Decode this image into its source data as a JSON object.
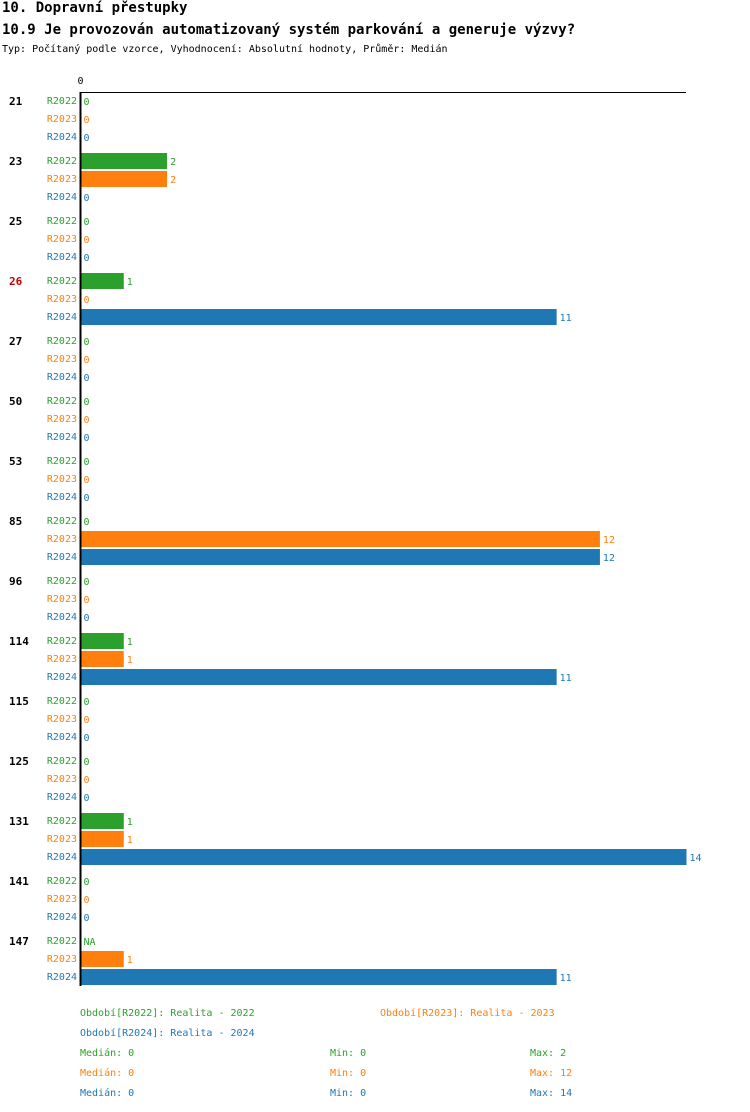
{
  "heading": {
    "section": "10. Dopravní přestupky",
    "question": "10.9 Je provozován automatizovaný systém parkování a generuje výzvy?",
    "info": "Typ: Počítaný podle vzorce, Vyhodnocení: Absolutní hodnoty, Průměr: Medián"
  },
  "colors": {
    "R2022": "#2ca02c",
    "R2023": "#ff7f0e",
    "R2024": "#1f77b4",
    "highlight": "#cc0000"
  },
  "chart_data": {
    "type": "bar",
    "orientation": "horizontal",
    "axis_label": "0",
    "xlim": [
      0,
      14
    ],
    "highlighted_category": "26",
    "categories": [
      "21",
      "23",
      "25",
      "26",
      "27",
      "50",
      "53",
      "85",
      "96",
      "114",
      "115",
      "125",
      "131",
      "141",
      "147"
    ],
    "series": [
      {
        "name": "R2022",
        "values": [
          0,
          2,
          0,
          1,
          0,
          0,
          0,
          0,
          0,
          1,
          0,
          0,
          1,
          0,
          "NA"
        ]
      },
      {
        "name": "R2023",
        "values": [
          0,
          2,
          0,
          0,
          0,
          0,
          0,
          12,
          0,
          1,
          0,
          0,
          1,
          0,
          1
        ]
      },
      {
        "name": "R2024",
        "values": [
          0,
          0,
          0,
          11,
          0,
          0,
          0,
          12,
          0,
          11,
          0,
          0,
          14,
          0,
          11
        ]
      }
    ]
  },
  "legend": {
    "r2022": "Období[R2022]: Realita - 2022",
    "r2023": "Období[R2023]: Realita - 2023",
    "r2024": "Období[R2024]: Realita - 2024"
  },
  "stats": {
    "r2022": {
      "median": "Medián: 0",
      "min": "Min: 0",
      "max": "Max: 2"
    },
    "r2023": {
      "median": "Medián: 0",
      "min": "Min: 0",
      "max": "Max: 12"
    },
    "r2024": {
      "median": "Medián: 0",
      "min": "Min: 0",
      "max": "Max: 14"
    }
  }
}
